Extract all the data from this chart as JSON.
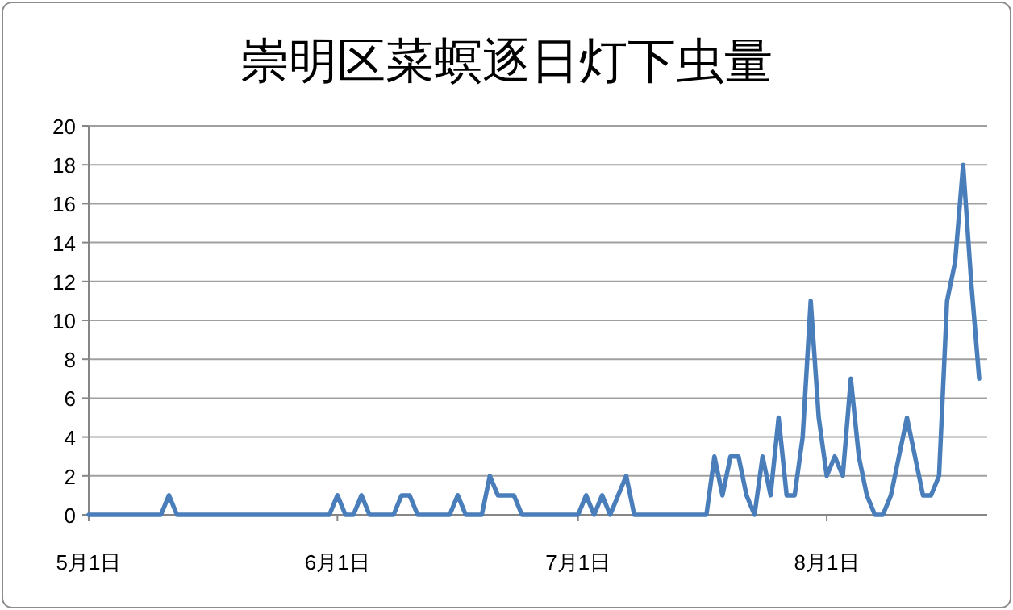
{
  "chart_data": {
    "type": "line",
    "title": "崇明区菜螟逐日灯下虫量",
    "x": [
      "--05-01",
      "--05-02",
      "--05-03",
      "--05-04",
      "--05-05",
      "--05-06",
      "--05-07",
      "--05-08",
      "--05-09",
      "--05-10",
      "--05-11",
      "--05-12",
      "--05-13",
      "--05-14",
      "--05-15",
      "--05-16",
      "--05-17",
      "--05-18",
      "--05-19",
      "--05-20",
      "--05-21",
      "--05-22",
      "--05-23",
      "--05-24",
      "--05-25",
      "--05-26",
      "--05-27",
      "--05-28",
      "--05-29",
      "--05-30",
      "--05-31",
      "--06-01",
      "--06-02",
      "--06-03",
      "--06-04",
      "--06-05",
      "--06-06",
      "--06-07",
      "--06-08",
      "--06-09",
      "--06-10",
      "--06-11",
      "--06-12",
      "--06-13",
      "--06-14",
      "--06-15",
      "--06-16",
      "--06-17",
      "--06-18",
      "--06-19",
      "--06-20",
      "--06-21",
      "--06-22",
      "--06-23",
      "--06-24",
      "--06-25",
      "--06-26",
      "--06-27",
      "--06-28",
      "--06-29",
      "--06-30",
      "--07-01",
      "--07-02",
      "--07-03",
      "--07-04",
      "--07-05",
      "--07-06",
      "--07-07",
      "--07-08",
      "--07-09",
      "--07-10",
      "--07-11",
      "--07-12",
      "--07-13",
      "--07-14",
      "--07-15",
      "--07-16",
      "--07-17",
      "--07-18",
      "--07-19",
      "--07-20",
      "--07-21",
      "--07-22",
      "--07-23",
      "--07-24",
      "--07-25",
      "--07-26",
      "--07-27",
      "--07-28",
      "--07-29",
      "--07-30",
      "--07-31",
      "--08-01",
      "--08-02",
      "--08-03",
      "--08-04",
      "--08-05",
      "--08-06",
      "--08-07",
      "--08-08",
      "--08-09",
      "--08-10",
      "--08-11",
      "--08-12",
      "--08-13",
      "--08-14",
      "--08-15",
      "--08-16",
      "--08-17",
      "--08-18",
      "--08-19",
      "--08-20"
    ],
    "values": [
      0,
      0,
      0,
      0,
      0,
      0,
      0,
      0,
      0,
      0,
      1,
      0,
      0,
      0,
      0,
      0,
      0,
      0,
      0,
      0,
      0,
      0,
      0,
      0,
      0,
      0,
      0,
      0,
      0,
      0,
      0,
      1,
      0,
      0,
      1,
      0,
      0,
      0,
      0,
      1,
      1,
      0,
      0,
      0,
      0,
      0,
      1,
      0,
      0,
      0,
      2,
      1,
      1,
      1,
      0,
      0,
      0,
      0,
      0,
      0,
      0,
      0,
      1,
      0,
      1,
      0,
      1,
      2,
      0,
      0,
      0,
      0,
      0,
      0,
      0,
      0,
      0,
      0,
      3,
      1,
      3,
      3,
      1,
      0,
      3,
      1,
      5,
      1,
      1,
      4,
      11,
      5,
      2,
      3,
      2,
      7,
      3,
      1,
      0,
      0,
      1,
      3,
      5,
      3,
      1,
      1,
      2,
      11,
      13,
      18,
      12,
      7
    ],
    "color": "#4a7ebb",
    "xlim": [
      "--05-01",
      "--08-21"
    ],
    "xticks": [
      {
        "value": "--05-01",
        "label": "5月1日"
      },
      {
        "value": "--06-01",
        "label": "6月1日"
      },
      {
        "value": "--07-01",
        "label": "7月1日"
      },
      {
        "value": "--08-01",
        "label": "8月1日"
      }
    ],
    "ylim": [
      0,
      20
    ],
    "yticks": [
      0,
      2,
      4,
      6,
      8,
      10,
      12,
      14,
      16,
      18,
      20
    ],
    "grid": "y"
  }
}
